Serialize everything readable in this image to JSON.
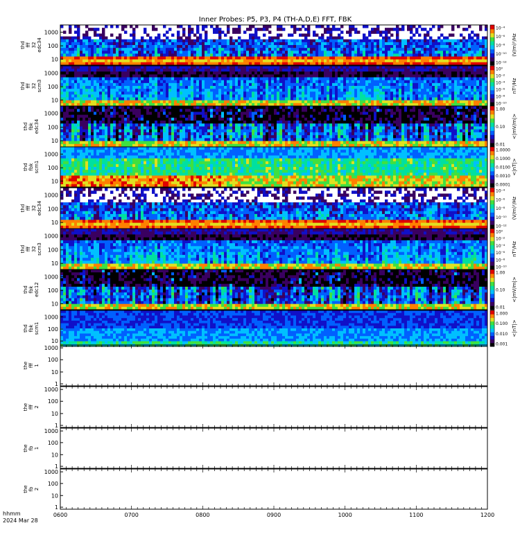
{
  "chart_data": {
    "type": "heatmap",
    "title": "Inner Probes: P5, P3, P4 (TH-A,D,E) FFT, FBK",
    "time_label": "hhmm",
    "date_label": "2024 Mar 28",
    "x_range": [
      "0600",
      "1200"
    ],
    "x_ticks": [
      "0600",
      "0700",
      "0800",
      "0900",
      "1000",
      "1100",
      "1200"
    ],
    "panels": [
      {
        "ylabel": [
          "thd",
          "fff",
          "32",
          "edc34"
        ],
        "ytick_labels": [
          "1000",
          "100",
          "10"
        ],
        "colorbar": {
          "label": "(V/m)²/Hz",
          "tick_labels": [
            "10⁻⁴",
            "10⁻⁶",
            "10⁻⁸",
            "10⁻¹⁰",
            "10⁻¹²"
          ]
        },
        "has_data": true,
        "pattern": "efield"
      },
      {
        "ylabel": [
          "thd",
          "fff",
          "32",
          "scm3"
        ],
        "ytick_labels": [
          "1000",
          "100",
          "10"
        ],
        "colorbar": {
          "label": "nT²/Hz",
          "tick_labels": [
            "10⁰",
            "10⁻²",
            "10⁻⁴",
            "10⁻⁶",
            "10⁻⁸",
            "10⁻¹⁰"
          ]
        },
        "has_data": true,
        "pattern": "scm"
      },
      {
        "ylabel": [
          "thd",
          "fbk",
          "edc34"
        ],
        "ytick_labels": [
          "1000",
          "100",
          "10"
        ],
        "colorbar": {
          "label": "<|mV/m|>",
          "tick_labels": [
            "1.00",
            "0.10",
            "0.01"
          ]
        },
        "has_data": true,
        "pattern": "fbke"
      },
      {
        "ylabel": [
          "thd",
          "fbk",
          "scm1"
        ],
        "ytick_labels": [
          "1000",
          "100",
          "10"
        ],
        "colorbar": {
          "label": "<|nT|>",
          "tick_labels": [
            "1.0000",
            "0.1000",
            "0.0100",
            "0.0010",
            "0.0001"
          ]
        },
        "has_data": true,
        "pattern": "fbkb"
      },
      {
        "ylabel": [
          "thd",
          "fff",
          "32",
          "edc34"
        ],
        "ytick_labels": [
          "1000",
          "100",
          "10"
        ],
        "colorbar": {
          "label": "(V/m)²/Hz",
          "tick_labels": [
            "10⁻⁴",
            "10⁻⁶",
            "10⁻⁸",
            "10⁻¹⁰",
            "10⁻¹²"
          ]
        },
        "has_data": true,
        "pattern": "efield"
      },
      {
        "ylabel": [
          "thd",
          "fff",
          "32",
          "scm3"
        ],
        "ytick_labels": [
          "1000",
          "100",
          "10"
        ],
        "colorbar": {
          "label": "nT²/Hz",
          "tick_labels": [
            "10⁰",
            "10⁻²",
            "10⁻⁴",
            "10⁻⁶",
            "10⁻⁸",
            "10⁻¹⁰"
          ]
        },
        "has_data": true,
        "pattern": "scm"
      },
      {
        "ylabel": [
          "thd",
          "fbk",
          "edc12"
        ],
        "ytick_labels": [
          "1000",
          "100",
          "10"
        ],
        "colorbar": {
          "label": "<|mV/m|>",
          "tick_labels": [
            "1.00",
            "0.10",
            "0.01"
          ]
        },
        "has_data": true,
        "pattern": "fbke"
      },
      {
        "ylabel": [
          "thd",
          "fbk",
          "scm1"
        ],
        "ytick_labels": [
          "1000",
          "100",
          "10"
        ],
        "colorbar": {
          "label": "<|nT|>",
          "tick_labels": [
            "1.000",
            "0.100",
            "0.010",
            "0.001"
          ]
        },
        "has_data": true,
        "pattern": "fbkb2"
      },
      {
        "ylabel": [
          "the",
          "fff",
          "1"
        ],
        "ytick_labels": [
          "1000",
          "100",
          "10",
          "1"
        ],
        "colorbar": null,
        "has_data": false
      },
      {
        "ylabel": [
          "the",
          "fff",
          "2"
        ],
        "ytick_labels": [
          "1000",
          "100",
          "10",
          "1"
        ],
        "colorbar": null,
        "has_data": false
      },
      {
        "ylabel": [
          "the",
          "fb",
          "1"
        ],
        "ytick_labels": [
          "1000",
          "100",
          "10",
          "1"
        ],
        "colorbar": null,
        "has_data": false
      },
      {
        "ylabel": [
          "the",
          "fb",
          "2"
        ],
        "ytick_labels": [
          "1000",
          "100",
          "10",
          "1"
        ],
        "colorbar": null,
        "has_data": false
      }
    ],
    "colormap": [
      "#000000",
      "#3a0060",
      "#1010c8",
      "#0060ff",
      "#00c0ff",
      "#00e0a0",
      "#40e040",
      "#e0e020",
      "#ff8000",
      "#e00000"
    ],
    "colors": {
      "background": "#ffffff",
      "axis": "#000000"
    }
  }
}
